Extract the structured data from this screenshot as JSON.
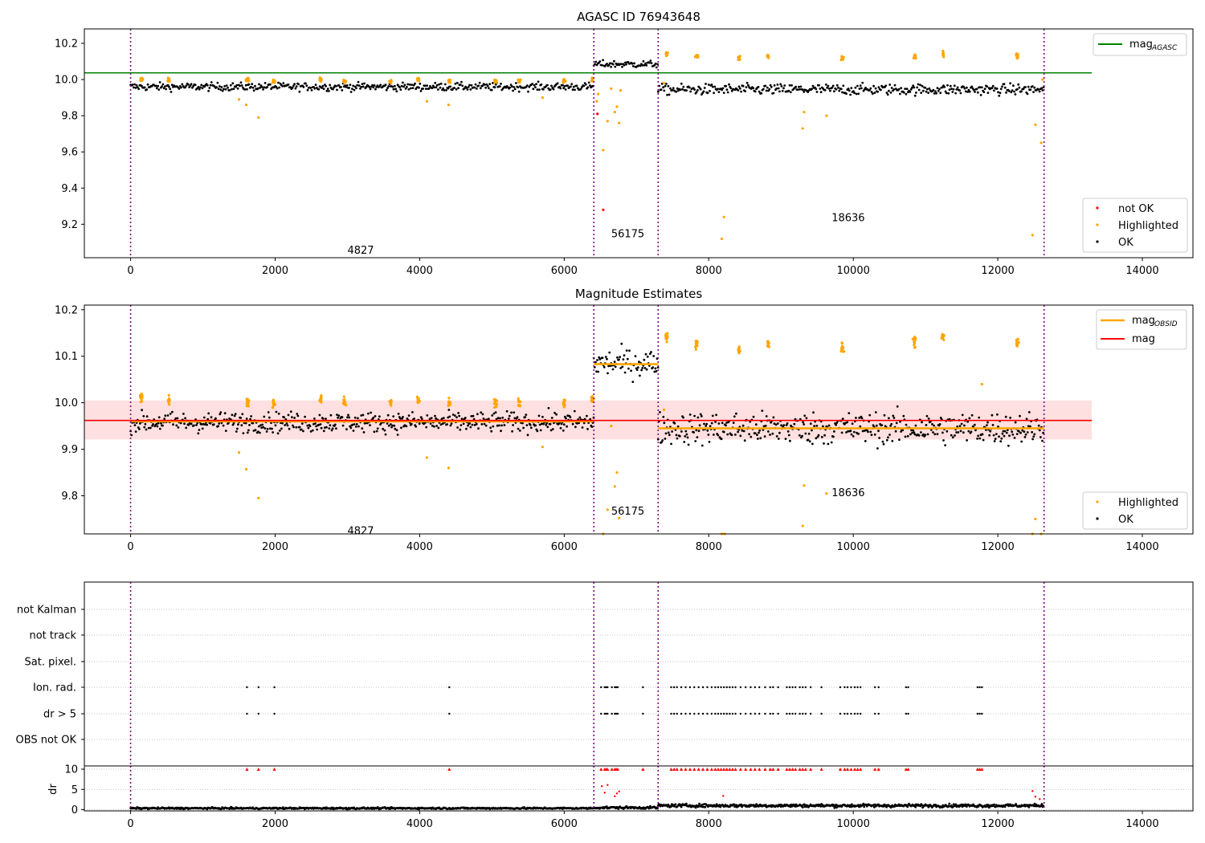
{
  "figure": {
    "title": "AGASC ID 76943648"
  },
  "chart_data": [
    {
      "panel": "top",
      "type": "scatter",
      "title": "AGASC ID 76943648",
      "xlabel": "",
      "ylabel": "",
      "xlim": [
        -640,
        14700
      ],
      "ylim": [
        9.015,
        10.28
      ],
      "xticks": [
        0,
        2000,
        4000,
        6000,
        8000,
        10000,
        12000,
        14000
      ],
      "yticks": [
        9.2,
        9.4,
        9.6,
        9.8,
        10.0,
        10.2
      ],
      "grid": false,
      "obsid_boundaries": [
        0,
        6410,
        7300,
        12640
      ],
      "obsid_labels": [
        {
          "text": "4827",
          "x": 3000,
          "y": 9.06
        },
        {
          "text": "56175",
          "x": 6650,
          "y": 9.15
        },
        {
          "text": "18636",
          "x": 9700,
          "y": 9.24
        }
      ],
      "hline": {
        "name": "mag_AGASC",
        "y": 10.037,
        "xmin": -640,
        "xmax": 13300,
        "color": "#008000"
      },
      "segments": [
        {
          "x0": 0,
          "x1": 6410,
          "mean": 9.96,
          "spread": 0.022
        },
        {
          "x0": 6410,
          "x1": 7300,
          "mean": 10.085,
          "spread": 0.02
        },
        {
          "x0": 7300,
          "x1": 12640,
          "mean": 9.945,
          "spread": 0.03
        }
      ],
      "highlight_clusters": [
        {
          "x": 150,
          "y": 10.0
        },
        {
          "x": 530,
          "y": 10.0
        },
        {
          "x": 1620,
          "y": 10.0
        },
        {
          "x": 1980,
          "y": 9.99
        },
        {
          "x": 2630,
          "y": 10.0
        },
        {
          "x": 2960,
          "y": 9.99
        },
        {
          "x": 3600,
          "y": 9.99
        },
        {
          "x": 3980,
          "y": 10.0
        },
        {
          "x": 4410,
          "y": 9.99
        },
        {
          "x": 5050,
          "y": 9.99
        },
        {
          "x": 5380,
          "y": 9.99
        },
        {
          "x": 6000,
          "y": 9.99
        },
        {
          "x": 6390,
          "y": 10.0
        },
        {
          "x": 7420,
          "y": 10.14
        },
        {
          "x": 7830,
          "y": 10.13
        },
        {
          "x": 8420,
          "y": 10.12
        },
        {
          "x": 8820,
          "y": 10.13
        },
        {
          "x": 9850,
          "y": 10.12
        },
        {
          "x": 10850,
          "y": 10.13
        },
        {
          "x": 11240,
          "y": 10.14
        },
        {
          "x": 12270,
          "y": 10.13
        }
      ],
      "highlight_outliers": [
        {
          "x": 1500,
          "y": 9.89
        },
        {
          "x": 1600,
          "y": 9.86
        },
        {
          "x": 1770,
          "y": 9.79
        },
        {
          "x": 4100,
          "y": 9.88
        },
        {
          "x": 4400,
          "y": 9.86
        },
        {
          "x": 5700,
          "y": 9.9
        },
        {
          "x": 6450,
          "y": 9.88
        },
        {
          "x": 6470,
          "y": 9.92
        },
        {
          "x": 6540,
          "y": 9.61
        },
        {
          "x": 6600,
          "y": 9.77
        },
        {
          "x": 6650,
          "y": 9.95
        },
        {
          "x": 6700,
          "y": 9.82
        },
        {
          "x": 6730,
          "y": 9.85
        },
        {
          "x": 6760,
          "y": 9.76
        },
        {
          "x": 6780,
          "y": 9.94
        },
        {
          "x": 7380,
          "y": 9.98
        },
        {
          "x": 8180,
          "y": 9.12
        },
        {
          "x": 8210,
          "y": 9.24
        },
        {
          "x": 9300,
          "y": 9.73
        },
        {
          "x": 9320,
          "y": 9.82
        },
        {
          "x": 9630,
          "y": 9.8
        },
        {
          "x": 12480,
          "y": 9.14
        },
        {
          "x": 12520,
          "y": 9.75
        },
        {
          "x": 12600,
          "y": 9.65
        },
        {
          "x": 12620,
          "y": 10.0
        }
      ],
      "not_ok_points": [
        {
          "x": 6460,
          "y": 9.81
        },
        {
          "x": 6540,
          "y": 9.28
        }
      ],
      "legends": [
        {
          "placement": "upper-right",
          "entries": [
            {
              "label": "mag",
              "sub": "AGASC",
              "color": "#008000",
              "kind": "line"
            }
          ]
        },
        {
          "placement": "lower-right",
          "entries": [
            {
              "label": "not OK",
              "color": "#ff0000",
              "kind": "marker"
            },
            {
              "label": "Highlighted",
              "color": "#ffa500",
              "kind": "marker"
            },
            {
              "label": "OK",
              "color": "#000000",
              "kind": "marker"
            }
          ]
        }
      ]
    },
    {
      "panel": "middle",
      "type": "scatter",
      "title": "Magnitude Estimates",
      "xlabel": "",
      "ylabel": "",
      "xlim": [
        -640,
        14700
      ],
      "ylim": [
        9.718,
        10.21
      ],
      "xticks": [
        0,
        2000,
        4000,
        6000,
        8000,
        10000,
        12000,
        14000
      ],
      "yticks": [
        9.8,
        9.9,
        10.0,
        10.1,
        10.2
      ],
      "grid": false,
      "obsid_boundaries": [
        0,
        6410,
        7300,
        12640
      ],
      "obsid_labels": [
        {
          "text": "4827",
          "x": 3000,
          "y": 9.726
        },
        {
          "text": "56175",
          "x": 6650,
          "y": 9.768
        },
        {
          "text": "18636",
          "x": 9700,
          "y": 9.808
        }
      ],
      "mag_band": {
        "y0": 9.921,
        "y1": 10.005,
        "xmin": -640,
        "xmax": 13300,
        "color": "#ff0000",
        "alpha": 0.12
      },
      "hline": {
        "name": "mag",
        "y": 9.962,
        "xmin": -640,
        "xmax": 13300,
        "color": "#ff0000"
      },
      "obsid_mags": [
        {
          "x0": 0,
          "x1": 6410,
          "y": 9.96
        },
        {
          "x0": 6410,
          "x1": 7300,
          "y": 10.083
        },
        {
          "x0": 7300,
          "x1": 12640,
          "y": 9.945
        }
      ],
      "segments": [
        {
          "x0": 0,
          "x1": 6410,
          "mean": 9.958,
          "spread": 0.022
        },
        {
          "x0": 6410,
          "x1": 7300,
          "mean": 10.085,
          "spread": 0.03
        },
        {
          "x0": 7300,
          "x1": 12640,
          "mean": 9.945,
          "spread": 0.035
        }
      ],
      "highlight_clusters": [
        {
          "x": 150,
          "y": 10.01
        },
        {
          "x": 530,
          "y": 10.005
        },
        {
          "x": 1620,
          "y": 10.0
        },
        {
          "x": 1980,
          "y": 9.998
        },
        {
          "x": 2630,
          "y": 10.01
        },
        {
          "x": 2960,
          "y": 10.0
        },
        {
          "x": 3600,
          "y": 10.0
        },
        {
          "x": 3980,
          "y": 10.005
        },
        {
          "x": 4410,
          "y": 10.0
        },
        {
          "x": 5050,
          "y": 10.0
        },
        {
          "x": 5380,
          "y": 10.0
        },
        {
          "x": 6000,
          "y": 10.0
        },
        {
          "x": 6390,
          "y": 10.005
        },
        {
          "x": 7420,
          "y": 10.14
        },
        {
          "x": 7830,
          "y": 10.125
        },
        {
          "x": 8420,
          "y": 10.115
        },
        {
          "x": 8820,
          "y": 10.125
        },
        {
          "x": 9850,
          "y": 10.12
        },
        {
          "x": 10850,
          "y": 10.13
        },
        {
          "x": 11240,
          "y": 10.14
        },
        {
          "x": 12270,
          "y": 10.13
        }
      ],
      "highlight_outliers": [
        {
          "x": 1500,
          "y": 9.893
        },
        {
          "x": 1600,
          "y": 9.857
        },
        {
          "x": 1770,
          "y": 9.795
        },
        {
          "x": 4100,
          "y": 9.882
        },
        {
          "x": 4400,
          "y": 9.86
        },
        {
          "x": 5700,
          "y": 9.905
        },
        {
          "x": 6540,
          "y": 9.718
        },
        {
          "x": 6600,
          "y": 9.77
        },
        {
          "x": 6650,
          "y": 9.95
        },
        {
          "x": 6700,
          "y": 9.82
        },
        {
          "x": 6730,
          "y": 9.85
        },
        {
          "x": 6760,
          "y": 9.752
        },
        {
          "x": 7380,
          "y": 9.985
        },
        {
          "x": 8180,
          "y": 9.718
        },
        {
          "x": 8220,
          "y": 9.718
        },
        {
          "x": 9300,
          "y": 9.735
        },
        {
          "x": 9320,
          "y": 9.822
        },
        {
          "x": 9630,
          "y": 9.805
        },
        {
          "x": 11780,
          "y": 10.04
        },
        {
          "x": 12480,
          "y": 9.718
        },
        {
          "x": 12520,
          "y": 9.75
        },
        {
          "x": 12600,
          "y": 9.718
        }
      ],
      "legends": [
        {
          "placement": "upper-right",
          "entries": [
            {
              "label": "mag",
              "sub": "OBSID",
              "color": "#ffa500",
              "kind": "line"
            },
            {
              "label": "mag",
              "sub": "",
              "color": "#ff0000",
              "kind": "line"
            }
          ]
        },
        {
          "placement": "lower-right",
          "entries": [
            {
              "label": "Highlighted",
              "color": "#ffa500",
              "kind": "marker"
            },
            {
              "label": "OK",
              "color": "#000000",
              "kind": "marker"
            }
          ]
        }
      ]
    },
    {
      "panel": "flags",
      "type": "scatter",
      "xlim": [
        -640,
        14700
      ],
      "xticks": [
        0,
        2000,
        4000,
        6000,
        8000,
        10000,
        12000,
        14000
      ],
      "categories": [
        "not Kalman",
        "not track",
        "Sat. pixel.",
        "Ion. rad.",
        "dr > 5",
        "OBS not OK"
      ],
      "obsid_boundaries": [
        0,
        6410,
        7300,
        12640
      ],
      "flag_times": [
        1610,
        1770,
        1990,
        4410,
        6510,
        6560,
        6580,
        6600,
        6660,
        6700,
        6720,
        6740,
        7090,
        7480,
        7520,
        7560,
        7620,
        7680,
        7740,
        7800,
        7860,
        7920,
        7980,
        8040,
        8090,
        8130,
        8170,
        8210,
        8250,
        8290,
        8330,
        8370,
        8440,
        8510,
        8580,
        8640,
        8700,
        8780,
        8850,
        8890,
        8960,
        9080,
        9120,
        9160,
        9200,
        9260,
        9300,
        9340,
        9410,
        9560,
        9820,
        9880,
        9920,
        9970,
        10020,
        10060,
        10100,
        10300,
        10350,
        10730,
        10760,
        11720,
        11750,
        11780
      ]
    },
    {
      "panel": "dr",
      "type": "scatter",
      "xlabel": "",
      "ylabel": "dr",
      "xlim": [
        -640,
        14700
      ],
      "ylim": [
        -0.3,
        10.8
      ],
      "xticks": [
        0,
        2000,
        4000,
        6000,
        8000,
        10000,
        12000,
        14000
      ],
      "yticks": [
        0,
        5,
        10
      ],
      "grid": true,
      "obsid_boundaries": [
        0,
        6410,
        7300,
        12640
      ],
      "segments": [
        {
          "x0": 0,
          "x1": 6410,
          "mean": 0.35,
          "spread": 0.2
        },
        {
          "x0": 6410,
          "x1": 7300,
          "mean": 0.5,
          "spread": 0.3
        },
        {
          "x0": 7300,
          "x1": 12640,
          "mean": 1.0,
          "spread": 0.4
        }
      ],
      "big_dr": [
        {
          "x": 6520,
          "y": 5.8
        },
        {
          "x": 6560,
          "y": 4.2
        },
        {
          "x": 6600,
          "y": 6.1
        },
        {
          "x": 6700,
          "y": 3.3
        },
        {
          "x": 6730,
          "y": 4.0
        },
        {
          "x": 6760,
          "y": 4.5
        },
        {
          "x": 8200,
          "y": 3.4
        },
        {
          "x": 12480,
          "y": 4.6
        },
        {
          "x": 12520,
          "y": 3.2
        },
        {
          "x": 12580,
          "y": 2.6
        }
      ]
    }
  ]
}
